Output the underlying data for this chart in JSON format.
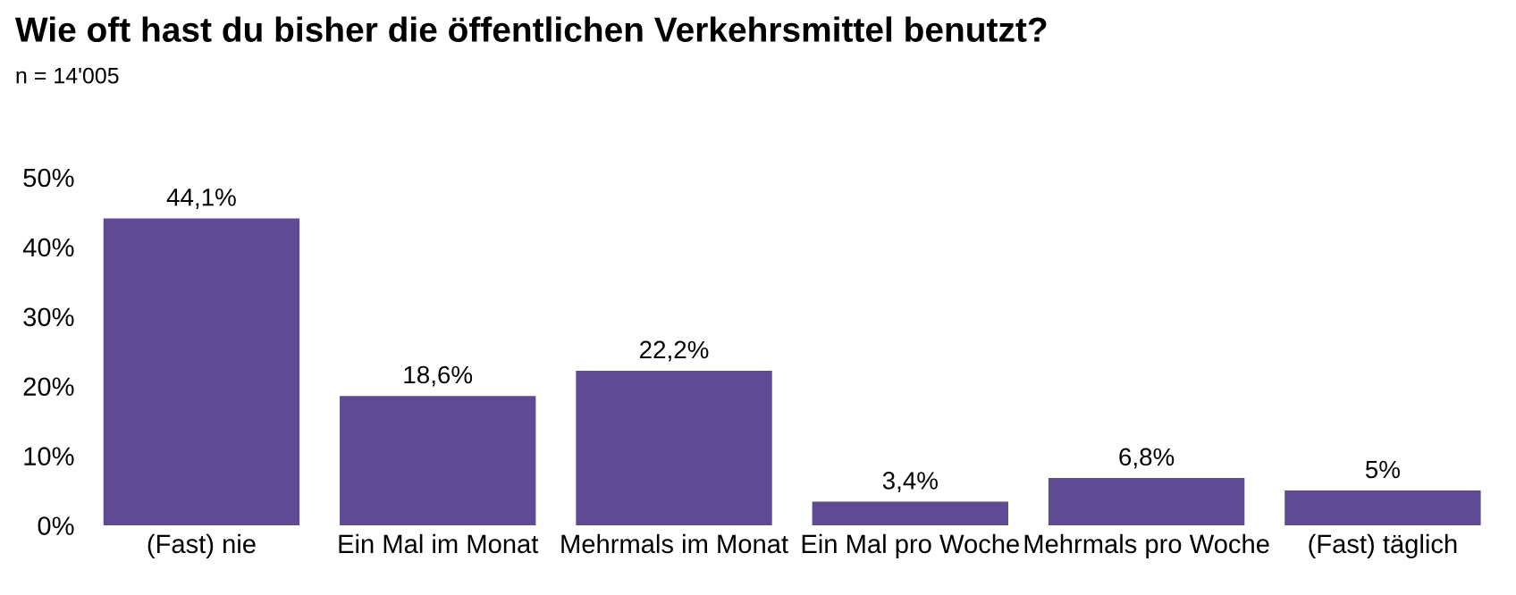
{
  "chart_data": {
    "type": "bar",
    "title": "Wie oft hast du bisher die öffentlichen Verkehrsmittel benutzt?",
    "subtitle": "n = 14'005",
    "categories": [
      "(Fast) nie",
      "Ein Mal im Monat",
      "Mehrmals im Monat",
      "Ein Mal pro Woche",
      "Mehrmals pro Woche",
      "(Fast) täglich"
    ],
    "values": [
      44.1,
      18.6,
      22.2,
      3.4,
      6.8,
      5
    ],
    "value_labels": [
      "44,1%",
      "18,6%",
      "22,2%",
      "3,4%",
      "6,8%",
      "5%"
    ],
    "color": "#5f4b94",
    "ylim": [
      0,
      50
    ],
    "yticks": [
      {
        "value": 0,
        "label": "0%"
      },
      {
        "value": 10,
        "label": "10%"
      },
      {
        "value": 20,
        "label": "20%"
      },
      {
        "value": 30,
        "label": "30%"
      },
      {
        "value": 40,
        "label": "40%"
      },
      {
        "value": 50,
        "label": "50%"
      }
    ],
    "grid": false,
    "legend": false
  }
}
